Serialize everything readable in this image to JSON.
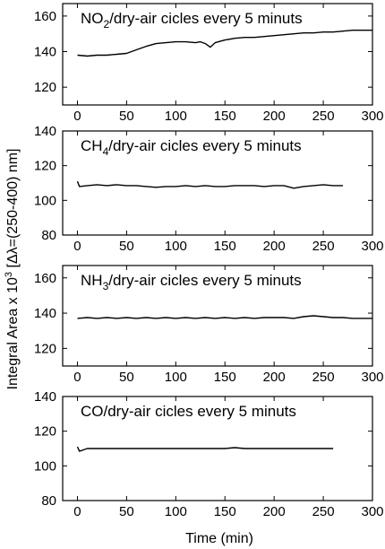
{
  "chart_data": [
    {
      "type": "line",
      "title_gas": "NO",
      "title_sub": "2",
      "title_rest": "/dry-air cicles every 5 minuts",
      "xlim": [
        -15,
        300
      ],
      "ylim": [
        110,
        167
      ],
      "xticks": [
        "0",
        "50",
        "100",
        "150",
        "200",
        "250",
        "300"
      ],
      "yticks": [
        "120",
        "140",
        "160"
      ],
      "x": [
        0,
        10,
        20,
        30,
        40,
        50,
        60,
        70,
        80,
        90,
        100,
        110,
        120,
        125,
        130,
        135,
        140,
        150,
        160,
        170,
        180,
        190,
        200,
        210,
        220,
        230,
        240,
        250,
        260,
        270,
        280,
        290,
        300
      ],
      "y": [
        138,
        137.5,
        138,
        138,
        138.5,
        139,
        141,
        143,
        144.5,
        145,
        145.5,
        145.5,
        145,
        145.5,
        144.5,
        142.5,
        145,
        146.5,
        147.5,
        148,
        148,
        148.5,
        149,
        149.5,
        150,
        150.5,
        150.5,
        151,
        151,
        151.5,
        152,
        152,
        152
      ]
    },
    {
      "type": "line",
      "title_gas": "CH",
      "title_sub": "4",
      "title_rest": "/dry-air cicles every 5 minuts",
      "xlim": [
        -15,
        300
      ],
      "ylim": [
        80,
        140
      ],
      "xticks": [
        "0",
        "50",
        "100",
        "150",
        "200",
        "250",
        "300"
      ],
      "yticks": [
        "80",
        "100",
        "120",
        "140"
      ],
      "x": [
        0,
        2,
        10,
        20,
        30,
        40,
        50,
        60,
        70,
        80,
        90,
        100,
        110,
        120,
        130,
        140,
        150,
        160,
        170,
        180,
        190,
        200,
        210,
        220,
        230,
        240,
        250,
        260,
        270
      ],
      "y": [
        111,
        108,
        108.5,
        109,
        108.5,
        109,
        108.5,
        108.5,
        108,
        107.5,
        108,
        108,
        108.5,
        108,
        108.5,
        108,
        108,
        108.5,
        108.5,
        108.5,
        108,
        108.5,
        108.5,
        107,
        108,
        108.5,
        109,
        108.5,
        108.5
      ]
    },
    {
      "type": "line",
      "title_gas": "NH",
      "title_sub": "3",
      "title_rest": "/dry-air cicles every 5 minuts",
      "xlim": [
        -15,
        300
      ],
      "ylim": [
        110,
        167
      ],
      "xticks": [
        "0",
        "50",
        "100",
        "150",
        "200",
        "250",
        "300"
      ],
      "yticks": [
        "120",
        "140",
        "160"
      ],
      "x": [
        0,
        10,
        20,
        30,
        40,
        50,
        60,
        70,
        80,
        90,
        100,
        110,
        120,
        130,
        140,
        150,
        160,
        170,
        180,
        190,
        200,
        210,
        220,
        230,
        240,
        250,
        260,
        270,
        280,
        290,
        300
      ],
      "y": [
        137,
        137.5,
        137,
        137.5,
        137,
        137.5,
        137,
        137.5,
        137,
        137.5,
        137,
        137.5,
        137,
        137.5,
        137,
        137.5,
        137,
        137.5,
        137,
        137.5,
        137.5,
        137.5,
        137,
        138,
        138.5,
        138,
        137.5,
        137.5,
        137,
        137,
        137
      ]
    },
    {
      "type": "line",
      "title_gas": "CO",
      "title_sub": "",
      "title_rest": "/dry-air cicles every 5 minuts",
      "xlim": [
        -15,
        300
      ],
      "ylim": [
        80,
        140
      ],
      "xticks": [
        "0",
        "50",
        "100",
        "150",
        "200",
        "250",
        "300"
      ],
      "yticks": [
        "80",
        "100",
        "120",
        "140"
      ],
      "x": [
        0,
        2,
        5,
        10,
        20,
        30,
        40,
        50,
        60,
        70,
        80,
        90,
        100,
        110,
        120,
        130,
        140,
        150,
        160,
        170,
        180,
        190,
        200,
        210,
        220,
        230,
        240,
        250,
        260
      ],
      "y": [
        111,
        108.5,
        109,
        110,
        110,
        110,
        110,
        110,
        110,
        110,
        110,
        110,
        110,
        110,
        110,
        110,
        110,
        110,
        110.5,
        110,
        110,
        110,
        110,
        110,
        110,
        110,
        110,
        110,
        110
      ]
    }
  ],
  "ylabel_main": "Integral Area x 10",
  "ylabel_sup": "3",
  "ylabel_rest": " [Δλ=(250-400) nm]",
  "xlabel": "Time (min)"
}
